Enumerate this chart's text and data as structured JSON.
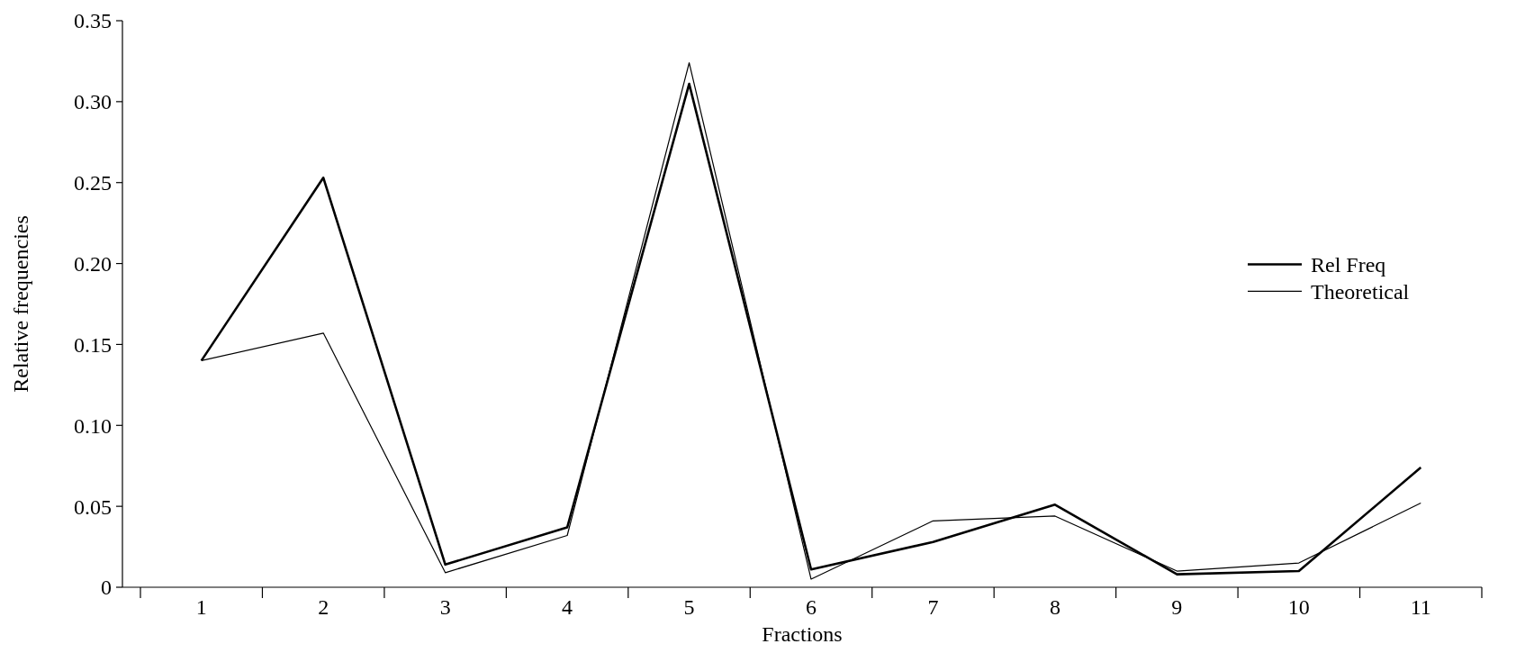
{
  "chart_data": {
    "type": "line",
    "xlabel": "Fractions",
    "ylabel": "Relative frequencies",
    "categories": [
      "1",
      "2",
      "3",
      "4",
      "5",
      "6",
      "7",
      "8",
      "9",
      "10",
      "11"
    ],
    "series": [
      {
        "name": "Rel Freq",
        "color": "#000000",
        "values": [
          0.14,
          0.253,
          0.014,
          0.037,
          0.311,
          0.011,
          0.028,
          0.051,
          0.008,
          0.01,
          0.074
        ]
      },
      {
        "name": "Theoretical",
        "color": "#000000",
        "values": [
          0.14,
          0.157,
          0.009,
          0.032,
          0.324,
          0.005,
          0.041,
          0.044,
          0.01,
          0.015,
          0.052
        ]
      }
    ],
    "ylim": [
      0,
      0.35
    ],
    "yticks": [
      0,
      {
        "value": 0.05,
        "label": "0.05"
      },
      {
        "value": 0.1,
        "label": "0.10"
      },
      {
        "value": 0.15,
        "label": "0.15"
      },
      {
        "value": 0.2,
        "label": "0.20"
      },
      {
        "value": 0.25,
        "label": "0.25"
      },
      {
        "value": 0.3,
        "label": "0.30"
      },
      {
        "value": 0.35,
        "label": "0.35"
      }
    ],
    "legend": "right",
    "grid": false,
    "line_style": "solid"
  }
}
